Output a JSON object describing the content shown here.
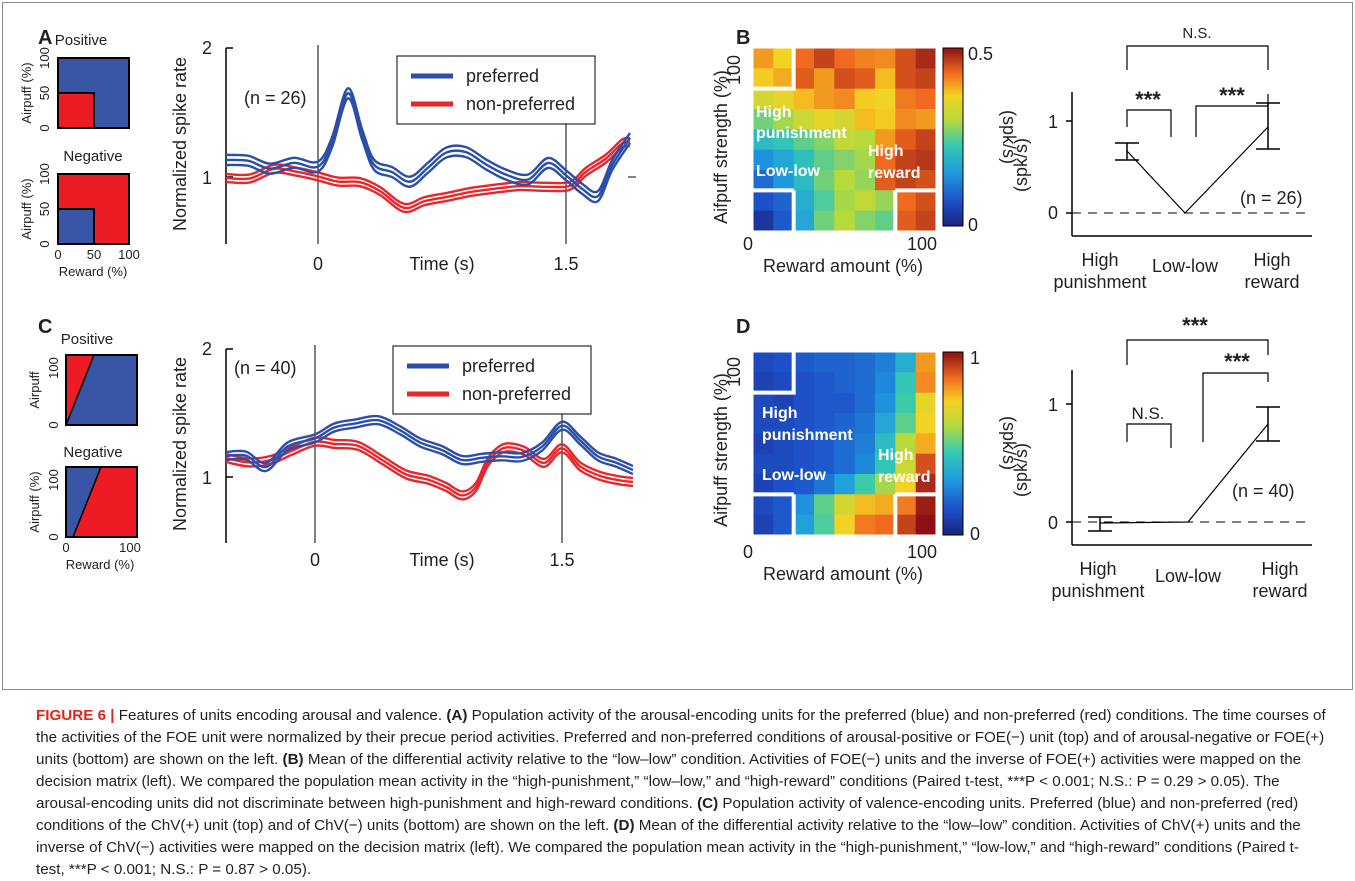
{
  "panels": {
    "A": {
      "letter": "A",
      "schematic_top": {
        "title": "Positive",
        "ylabel": "Airpuff (%)",
        "yticks": [
          "0",
          "50",
          "100"
        ]
      },
      "schematic_bottom": {
        "title": "Negative",
        "ylabel": "Airpuff (%)",
        "yticks": [
          "0",
          "50",
          "100"
        ],
        "xticks": [
          "0",
          "50",
          "100"
        ],
        "xlabel": "Reward (%)"
      },
      "trace": {
        "ylabel": "Normalized spike rate",
        "xlabel": "Time (s)",
        "n_label": "(n = 26)",
        "yticks": [
          "1",
          "2"
        ],
        "xticks": [
          "0",
          "1.5"
        ],
        "legend": [
          "preferred",
          "non-preferred"
        ]
      }
    },
    "B": {
      "letter": "B",
      "heatmap": {
        "ylabel": "Aifpuff strength (%)",
        "xlabel": "Reward amount (%)",
        "x_ticks": [
          "0",
          "100"
        ],
        "y_tick_top": "100",
        "colorbar_ticks": [
          "0.5",
          "0"
        ],
        "colorbar_label": "(spk/s)",
        "region_labels": {
          "high_punishment_1": "High",
          "high_punishment_2": "punishment",
          "low_low": "Low-low",
          "high_reward_1": "High",
          "high_reward_2": "reward"
        }
      },
      "comparison": {
        "ylabel": "(spk/s)",
        "yticks": [
          "0",
          "1"
        ],
        "n_label": "(n = 26)",
        "categories": [
          [
            "High",
            "punishment"
          ],
          [
            "Low-low"
          ],
          [
            "High",
            "reward"
          ]
        ],
        "sig_outer": "N.S.",
        "sig_left": "***",
        "sig_right": "***"
      }
    },
    "C": {
      "letter": "C",
      "schematic_top": {
        "title": "Positive",
        "ylabel": "Airpuff",
        "yticks": [
          "0",
          "100"
        ]
      },
      "schematic_bottom": {
        "title": "Negative",
        "ylabel": "Airpuff (%)",
        "yticks": [
          "0",
          "100"
        ],
        "xticks": [
          "0",
          "100"
        ],
        "xlabel": "Reward (%)"
      },
      "trace": {
        "ylabel": "Normalized spike rate",
        "xlabel": "Time (s)",
        "n_label": "(n = 40)",
        "yticks": [
          "1",
          "2"
        ],
        "xticks": [
          "0",
          "1.5"
        ],
        "legend": [
          "preferred",
          "non-preferred"
        ]
      }
    },
    "D": {
      "letter": "D",
      "heatmap": {
        "ylabel": "Aifpuff strength (%)",
        "xlabel": "Reward amount (%)",
        "x_ticks": [
          "0",
          "100"
        ],
        "y_tick_top": "100",
        "colorbar_ticks": [
          "1",
          "0"
        ],
        "colorbar_label": "(spk/s)",
        "region_labels": {
          "high_punishment_1": "High",
          "high_punishment_2": "punishment",
          "low_low": "Low-low",
          "high_reward_1": "High",
          "high_reward_2": "reward"
        }
      },
      "comparison": {
        "ylabel": "(spk/s)",
        "yticks": [
          "0",
          "1"
        ],
        "n_label": "(n = 40)",
        "categories": [
          [
            "High",
            "punishment"
          ],
          [
            "Low-low"
          ],
          [
            "High",
            "reward"
          ]
        ],
        "sig_outer": "***",
        "sig_left": "N.S.",
        "sig_right": "***"
      }
    }
  },
  "caption": {
    "figure_label": "FIGURE 6 |",
    "lead": " Features of units encoding arousal and valence. ",
    "A_tag": "(A)",
    "A_text": " Population activity of the arousal-encoding units for the preferred (blue) and non-preferred (red) conditions. The time courses of the activities of the FOE unit were normalized by their precue period activities. Preferred and non-preferred conditions of arousal-positive or FOE(−) unit (top) and of arousal-negative or FOE(+) units (bottom) are shown on the left. ",
    "B_tag": "(B)",
    "B_text": " Mean of the differential activity relative to the “low–low” condition. Activities of FOE(−) units and the inverse of FOE(+) activities were mapped on the decision matrix (left). We compared the population mean activity in the “high-punishment,” “low–low,” and “high-reward” conditions (Paired t-test, ***P < 0.001; N.S.: P = 0.29 > 0.05). The arousal-encoding units did not discriminate between high-punishment and high-reward conditions. ",
    "C_tag": "(C)",
    "C_text": " Population activity of valence-encoding units. Preferred (blue) and non-preferred (red) conditions of the ChV(+) unit (top) and of ChV(−) units (bottom) are shown on the left. ",
    "D_tag": "(D)",
    "D_text": " Mean of the differential activity relative to the “low–low” condition. Activities of ChV(+) units and the inverse of ChV(−) activities were mapped on the decision matrix (left). We compared the population mean activity in the “high-punishment,” “low-low,” and “high-reward” conditions (Paired t-test, ***P < 0.001; N.S.: P = 0.87 > 0.05)."
  },
  "colors": {
    "preferred": "#2b4fa8",
    "non_preferred": "#e8262b",
    "schematic_blue": "#3955a5",
    "schematic_red": "#ed1c24",
    "caption_label": "#e2231a"
  }
}
